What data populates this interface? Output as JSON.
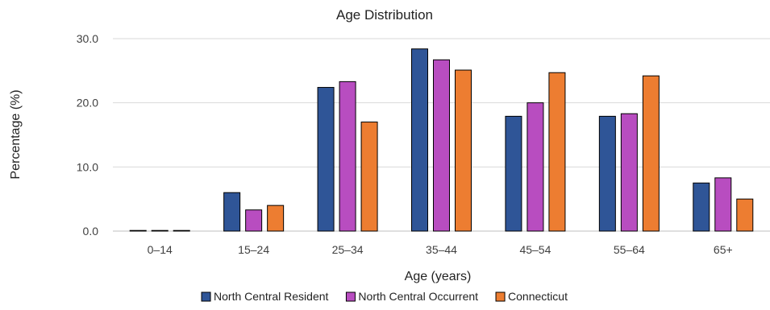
{
  "chart_data": {
    "type": "bar",
    "title": "Age Distribution",
    "xlabel": "Age (years)",
    "ylabel": "Percentage (%)",
    "categories": [
      "0–14",
      "15–24",
      "25–34",
      "35–44",
      "45–54",
      "55–64",
      "65+"
    ],
    "ylim": [
      0,
      30
    ],
    "yticks": [
      "0.0",
      "10.0",
      "20.0",
      "30.0"
    ],
    "grid": true,
    "legend_position": "bottom",
    "series": [
      {
        "name": "North Central Resident",
        "color": "#2F5597",
        "values": [
          0,
          6.0,
          22.4,
          28.4,
          17.9,
          17.9,
          7.5
        ]
      },
      {
        "name": "North Central Occurrent",
        "color": "#B84DC0",
        "values": [
          0,
          3.3,
          23.3,
          26.7,
          20.0,
          18.3,
          8.3
        ]
      },
      {
        "name": "Connecticut",
        "color": "#ED7D31",
        "values": [
          0.1,
          4.0,
          17.0,
          25.1,
          24.7,
          24.2,
          5.0
        ]
      }
    ]
  }
}
